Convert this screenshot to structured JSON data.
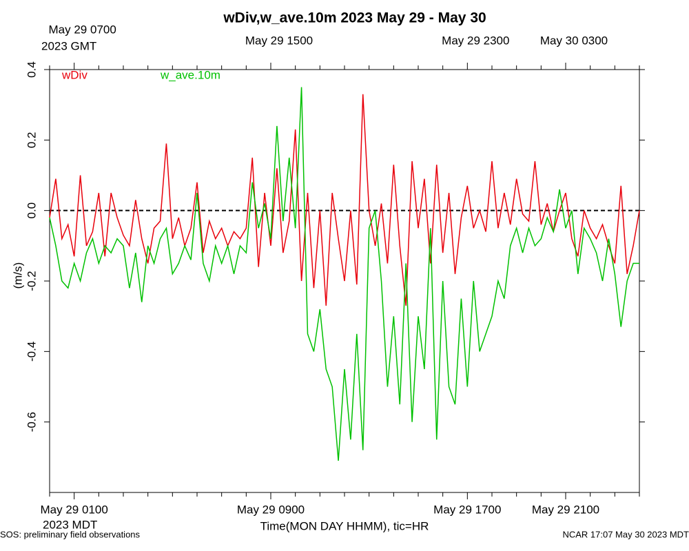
{
  "chart_data": {
    "type": "line",
    "title": "wDiv,w_ave.10m 2023 May 29 - May 30",
    "x_label": "Time(MON DAY HHMM), tic=HR",
    "y_label": "(m/s)",
    "footer_left": "SOS: preliminary field observations",
    "footer_right": "NCAR 17:07 May 30 2023 MDT",
    "x_year_label": "2023 MDT",
    "x2_year_label": "2023 GMT",
    "xlim": [
      0,
      24
    ],
    "ylim": [
      -0.8,
      0.4
    ],
    "xticks": [
      {
        "value": 1,
        "label": "May 29 0100"
      },
      {
        "value": 9,
        "label": "May 29 0900"
      },
      {
        "value": 17,
        "label": "May 29 1700"
      },
      {
        "value": 21,
        "label": "May 29 2100"
      }
    ],
    "x2ticks": [
      {
        "value": 1,
        "label": "May 29 0700"
      },
      {
        "value": 9,
        "label": "May 29 1500"
      },
      {
        "value": 17,
        "label": "May 29 2300"
      },
      {
        "value": 21,
        "label": "May 30 0300"
      }
    ],
    "xticks_minor": [
      0,
      2,
      3,
      4,
      5,
      6,
      7,
      8,
      10,
      11,
      12,
      13,
      14,
      15,
      16,
      18,
      19,
      20,
      22,
      23,
      24
    ],
    "yticks": [
      -0.6,
      -0.4,
      -0.2,
      {
        "value": 0,
        "label": "0.0"
      },
      0.2,
      0.4
    ],
    "hline": 0,
    "x": [
      0,
      0.25,
      0.5,
      0.75,
      1,
      1.25,
      1.5,
      1.75,
      2,
      2.25,
      2.5,
      2.75,
      3,
      3.25,
      3.5,
      3.75,
      4,
      4.25,
      4.5,
      4.75,
      5,
      5.25,
      5.5,
      5.75,
      6,
      6.25,
      6.5,
      6.75,
      7,
      7.25,
      7.5,
      7.75,
      8,
      8.25,
      8.5,
      8.75,
      9,
      9.25,
      9.5,
      9.75,
      10,
      10.25,
      10.5,
      10.75,
      11,
      11.25,
      11.5,
      11.75,
      12,
      12.25,
      12.5,
      12.75,
      13,
      13.25,
      13.5,
      13.75,
      14,
      14.25,
      14.5,
      14.75,
      15,
      15.25,
      15.5,
      15.75,
      16,
      16.25,
      16.5,
      16.75,
      17,
      17.25,
      17.5,
      17.75,
      18,
      18.25,
      18.5,
      18.75,
      19,
      19.25,
      19.5,
      19.75,
      20,
      20.25,
      20.5,
      20.75,
      21,
      21.25,
      21.5,
      21.75,
      22,
      22.25,
      22.5,
      22.75,
      23,
      23.25,
      23.5,
      23.75,
      24
    ],
    "series": [
      {
        "name": "wDiv",
        "color": "#e8000b",
        "values": [
          -0.02,
          0.09,
          -0.08,
          -0.04,
          -0.13,
          0.1,
          -0.1,
          -0.06,
          0.05,
          -0.13,
          0.05,
          -0.02,
          -0.07,
          -0.1,
          0.03,
          -0.08,
          -0.15,
          -0.05,
          -0.03,
          0.19,
          -0.08,
          -0.02,
          -0.1,
          -0.05,
          0.08,
          -0.12,
          -0.03,
          -0.08,
          -0.05,
          -0.1,
          -0.06,
          -0.08,
          -0.05,
          0.15,
          -0.16,
          0.05,
          -0.1,
          0.12,
          -0.12,
          -0.03,
          0.23,
          -0.2,
          0.05,
          -0.22,
          0.0,
          -0.27,
          0.05,
          -0.08,
          -0.2,
          0.0,
          -0.21,
          0.33,
          0.0,
          -0.1,
          0.02,
          -0.15,
          0.13,
          -0.1,
          -0.27,
          0.14,
          -0.05,
          0.09,
          -0.15,
          0.13,
          -0.12,
          0.05,
          -0.18,
          -0.02,
          0.07,
          -0.05,
          0.0,
          -0.06,
          0.14,
          -0.05,
          0.05,
          -0.04,
          0.09,
          -0.01,
          -0.03,
          0.14,
          -0.04,
          0.02,
          -0.06,
          0.0,
          0.05,
          -0.08,
          -0.13,
          0.0,
          -0.05,
          -0.08,
          -0.04,
          -0.1,
          -0.15,
          0.07,
          -0.18,
          -0.1,
          0.0
        ]
      },
      {
        "name": "w_ave.10m",
        "color": "#00c000",
        "values": [
          -0.02,
          -0.1,
          -0.2,
          -0.22,
          -0.15,
          -0.2,
          -0.12,
          -0.08,
          -0.15,
          -0.1,
          -0.12,
          -0.08,
          -0.1,
          -0.22,
          -0.12,
          -0.26,
          -0.1,
          -0.15,
          -0.08,
          -0.05,
          -0.18,
          -0.15,
          -0.1,
          -0.14,
          0.05,
          -0.15,
          -0.2,
          -0.1,
          -0.15,
          -0.1,
          -0.18,
          -0.1,
          -0.12,
          0.08,
          -0.05,
          0.02,
          -0.08,
          0.24,
          -0.03,
          0.15,
          -0.05,
          0.35,
          -0.35,
          -0.4,
          -0.28,
          -0.45,
          -0.5,
          -0.71,
          -0.45,
          -0.65,
          -0.35,
          -0.68,
          -0.05,
          0.0,
          -0.2,
          -0.5,
          -0.3,
          -0.55,
          -0.15,
          -0.6,
          -0.3,
          -0.45,
          -0.05,
          -0.65,
          -0.2,
          -0.5,
          -0.55,
          -0.25,
          -0.5,
          -0.2,
          -0.4,
          -0.35,
          -0.3,
          -0.2,
          -0.25,
          -0.1,
          -0.05,
          -0.12,
          -0.05,
          -0.1,
          -0.08,
          -0.02,
          -0.06,
          0.06,
          -0.05,
          0.0,
          -0.18,
          -0.05,
          -0.08,
          -0.12,
          -0.2,
          -0.08,
          -0.18,
          -0.33,
          -0.2,
          -0.15,
          -0.15
        ]
      }
    ]
  }
}
